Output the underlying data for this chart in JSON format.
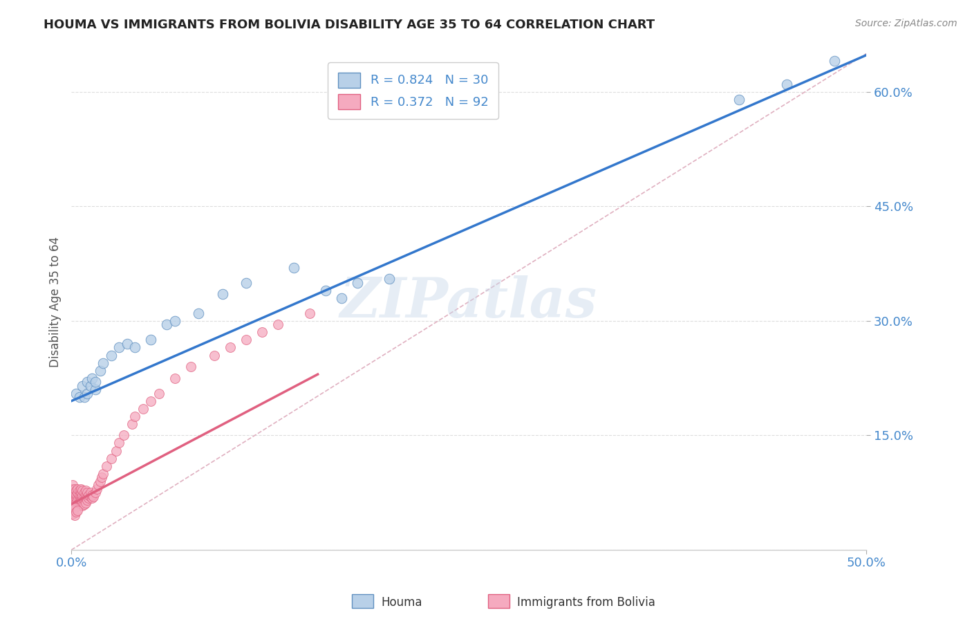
{
  "title": "HOUMA VS IMMIGRANTS FROM BOLIVIA DISABILITY AGE 35 TO 64 CORRELATION CHART",
  "source": "Source: ZipAtlas.com",
  "ylabel": "Disability Age 35 to 64",
  "xlim": [
    0,
    0.5
  ],
  "ylim": [
    0,
    0.65
  ],
  "xtick_pos": [
    0.0,
    0.5
  ],
  "xtick_labels": [
    "0.0%",
    "50.0%"
  ],
  "ytick_pos": [
    0.15,
    0.3,
    0.45,
    0.6
  ],
  "ytick_labels": [
    "15.0%",
    "30.0%",
    "45.0%",
    "60.0%"
  ],
  "grid_yticks": [
    0.0,
    0.15,
    0.3,
    0.45,
    0.6
  ],
  "legend_r1": "R = 0.824",
  "legend_n1": "N = 30",
  "legend_r2": "R = 0.372",
  "legend_n2": "N = 92",
  "legend_label1": "Houma",
  "legend_label2": "Immigrants from Bolivia",
  "houma_color": "#b8d0e8",
  "bolivia_color": "#f5aabf",
  "houma_edge": "#6090c0",
  "bolivia_edge": "#e06080",
  "trend_blue": "#3377cc",
  "trend_pink_dashed": "#e06080",
  "ref_line_color": "#cccccc",
  "background_color": "#ffffff",
  "grid_color": "#dddddd",
  "title_color": "#222222",
  "watermark": "ZIPatlas",
  "axis_label_color": "#4488cc",
  "houma_x": [
    0.003,
    0.005,
    0.007,
    0.008,
    0.01,
    0.01,
    0.012,
    0.013,
    0.015,
    0.015,
    0.018,
    0.02,
    0.025,
    0.03,
    0.035,
    0.04,
    0.05,
    0.06,
    0.065,
    0.08,
    0.095,
    0.11,
    0.14,
    0.42,
    0.45,
    0.48,
    0.16,
    0.17,
    0.18,
    0.2
  ],
  "houma_y": [
    0.205,
    0.2,
    0.215,
    0.2,
    0.22,
    0.205,
    0.215,
    0.225,
    0.21,
    0.22,
    0.235,
    0.245,
    0.255,
    0.265,
    0.27,
    0.265,
    0.275,
    0.295,
    0.3,
    0.31,
    0.335,
    0.35,
    0.37,
    0.59,
    0.61,
    0.64,
    0.34,
    0.33,
    0.35,
    0.355
  ],
  "bolivia_x": [
    0.0,
    0.0,
    0.0,
    0.0,
    0.0,
    0.001,
    0.001,
    0.001,
    0.001,
    0.001,
    0.001,
    0.001,
    0.002,
    0.002,
    0.002,
    0.002,
    0.002,
    0.003,
    0.003,
    0.003,
    0.003,
    0.003,
    0.004,
    0.004,
    0.004,
    0.004,
    0.004,
    0.005,
    0.005,
    0.005,
    0.005,
    0.005,
    0.006,
    0.006,
    0.006,
    0.006,
    0.006,
    0.007,
    0.007,
    0.007,
    0.007,
    0.007,
    0.008,
    0.008,
    0.008,
    0.008,
    0.009,
    0.009,
    0.009,
    0.009,
    0.01,
    0.01,
    0.01,
    0.011,
    0.011,
    0.012,
    0.012,
    0.013,
    0.013,
    0.014,
    0.015,
    0.016,
    0.017,
    0.018,
    0.019,
    0.02,
    0.022,
    0.025,
    0.028,
    0.03,
    0.033,
    0.038,
    0.04,
    0.045,
    0.05,
    0.055,
    0.065,
    0.075,
    0.09,
    0.1,
    0.11,
    0.12,
    0.13,
    0.15,
    0.0,
    0.0,
    0.001,
    0.001,
    0.002,
    0.002,
    0.003,
    0.004
  ],
  "bolivia_y": [
    0.07,
    0.075,
    0.065,
    0.08,
    0.06,
    0.07,
    0.075,
    0.065,
    0.08,
    0.06,
    0.055,
    0.085,
    0.07,
    0.065,
    0.075,
    0.06,
    0.08,
    0.068,
    0.072,
    0.062,
    0.078,
    0.058,
    0.07,
    0.065,
    0.075,
    0.06,
    0.08,
    0.068,
    0.072,
    0.062,
    0.078,
    0.058,
    0.07,
    0.065,
    0.075,
    0.06,
    0.08,
    0.068,
    0.072,
    0.062,
    0.078,
    0.058,
    0.07,
    0.065,
    0.075,
    0.06,
    0.068,
    0.072,
    0.062,
    0.078,
    0.07,
    0.065,
    0.075,
    0.068,
    0.072,
    0.07,
    0.075,
    0.068,
    0.072,
    0.07,
    0.075,
    0.08,
    0.085,
    0.09,
    0.095,
    0.1,
    0.11,
    0.12,
    0.13,
    0.14,
    0.15,
    0.165,
    0.175,
    0.185,
    0.195,
    0.205,
    0.225,
    0.24,
    0.255,
    0.265,
    0.275,
    0.285,
    0.295,
    0.31,
    0.052,
    0.048,
    0.053,
    0.047,
    0.055,
    0.045,
    0.05,
    0.052
  ],
  "blue_trend_x": [
    0.0,
    0.5
  ],
  "blue_trend_y": [
    0.195,
    0.648
  ],
  "pink_trend_x": [
    0.0,
    0.155
  ],
  "pink_trend_y": [
    0.06,
    0.23
  ]
}
